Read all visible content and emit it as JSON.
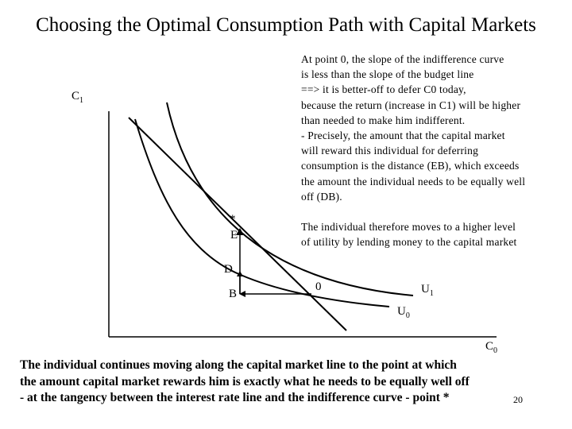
{
  "title": "Choosing the Optimal Consumption Path with Capital Markets",
  "annotation_top": {
    "lines": [
      "At point 0, the slope of the indifference curve",
      "is less than the slope of the budget line",
      "==> it is better-off to defer C0 today,",
      "because the return (increase in C1) will be higher",
      "than needed to make him indifferent.",
      "- Precisely, the amount that the capital market",
      "will reward this individual for deferring",
      "consumption is the distance (EB), which exceeds",
      "the amount the individual needs to be equally well",
      "off (DB)."
    ]
  },
  "annotation_mid": {
    "lines": [
      "The individual therefore moves to a higher level",
      "of utility by lending money to the capital market"
    ]
  },
  "axes": {
    "y_label": "C",
    "y_sub": "1",
    "x_label": "C",
    "x_sub": "0"
  },
  "points": {
    "star": "*",
    "E": "E",
    "D": "D",
    "B": "B",
    "zero": "0"
  },
  "curves": {
    "U1": "U",
    "U1_sub": "1",
    "U0": "U",
    "U0_sub": "0"
  },
  "bottom_text": {
    "lines": [
      "The individual continues moving along the capital market line to the point at which",
      "the amount capital market rewards him is exactly what he needs to be equally well off",
      "- at the tangency between the interest rate line and the indifference curve - point *"
    ]
  },
  "page_number": "20"
}
